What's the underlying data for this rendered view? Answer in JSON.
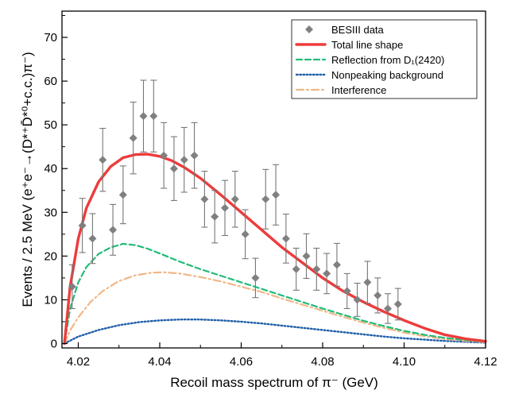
{
  "chart_data": {
    "type": "scatter",
    "xlabel": "Recoil mass spectrum of π⁻ (GeV)",
    "ylabel": "Events / 2.5 MeV (e⁺e⁻→(D*⁺D̄*⁰+c.c.)π⁻)",
    "xlim": [
      4.016,
      4.12
    ],
    "ylim": [
      -1,
      76
    ],
    "xticks": [
      "4.02",
      "4.04",
      "4.06",
      "4.08",
      "4.10",
      "4.12"
    ],
    "yticks": [
      "0",
      "10",
      "20",
      "30",
      "40",
      "50",
      "60",
      "70"
    ],
    "grid": false,
    "legend_position": "top-right",
    "series": [
      {
        "name": "BESIII data",
        "style": "points-with-error-bars",
        "color": "#808080",
        "points": [
          {
            "x": 4.0185,
            "y": 13,
            "err": 5.0
          },
          {
            "x": 4.021,
            "y": 27,
            "err": 6.2
          },
          {
            "x": 4.0235,
            "y": 24,
            "err": 5.7
          },
          {
            "x": 4.026,
            "y": 42,
            "err": 7.2
          },
          {
            "x": 4.0285,
            "y": 26,
            "err": 5.8
          },
          {
            "x": 4.031,
            "y": 34,
            "err": 6.6
          },
          {
            "x": 4.0335,
            "y": 47,
            "err": 8.2
          },
          {
            "x": 4.036,
            "y": 52,
            "err": 8.2
          },
          {
            "x": 4.0385,
            "y": 52,
            "err": 8.2
          },
          {
            "x": 4.041,
            "y": 43,
            "err": 7.5
          },
          {
            "x": 4.0435,
            "y": 40,
            "err": 7.3
          },
          {
            "x": 4.046,
            "y": 42,
            "err": 7.4
          },
          {
            "x": 4.0485,
            "y": 43,
            "err": 7.5
          },
          {
            "x": 4.051,
            "y": 33,
            "err": 6.4
          },
          {
            "x": 4.0535,
            "y": 29,
            "err": 6.0
          },
          {
            "x": 4.056,
            "y": 31,
            "err": 6.3
          },
          {
            "x": 4.0585,
            "y": 33,
            "err": 6.4
          },
          {
            "x": 4.061,
            "y": 25,
            "err": 5.6
          },
          {
            "x": 4.0635,
            "y": 15,
            "err": 4.5
          },
          {
            "x": 4.066,
            "y": 33,
            "err": 6.8
          },
          {
            "x": 4.0685,
            "y": 34,
            "err": 6.9
          },
          {
            "x": 4.071,
            "y": 24,
            "err": 5.6
          },
          {
            "x": 4.0735,
            "y": 17,
            "err": 4.8
          },
          {
            "x": 4.076,
            "y": 20,
            "err": 5.1
          },
          {
            "x": 4.0785,
            "y": 17,
            "err": 4.8
          },
          {
            "x": 4.081,
            "y": 16,
            "err": 4.6
          },
          {
            "x": 4.0835,
            "y": 18,
            "err": 4.9
          },
          {
            "x": 4.086,
            "y": 12,
            "err": 4.0
          },
          {
            "x": 4.0885,
            "y": 10,
            "err": 3.8
          },
          {
            "x": 4.091,
            "y": 14,
            "err": 4.8
          },
          {
            "x": 4.0935,
            "y": 11,
            "err": 4.0
          },
          {
            "x": 4.096,
            "y": 8,
            "err": 3.4
          },
          {
            "x": 4.0985,
            "y": 9,
            "err": 3.6
          }
        ]
      },
      {
        "name": "Total line shape",
        "style": "solid",
        "color": "#ee3b3b",
        "x": [
          4.0166,
          4.018,
          4.02,
          4.022,
          4.025,
          4.028,
          4.031,
          4.034,
          4.037,
          4.04,
          4.043,
          4.046,
          4.05,
          4.055,
          4.06,
          4.065,
          4.07,
          4.075,
          4.08,
          4.085,
          4.09,
          4.095,
          4.1,
          4.105,
          4.11,
          4.115,
          4.12
        ],
        "y": [
          0,
          13,
          24,
          31,
          37,
          40.5,
          42.5,
          43.2,
          43.3,
          42.8,
          41.8,
          40.3,
          37.8,
          34,
          30,
          26,
          22,
          18.5,
          15,
          12,
          9.5,
          7.3,
          5.3,
          3.5,
          2,
          1.1,
          0.5
        ]
      },
      {
        "name": "Reflection from D₁(2420)",
        "style": "dashed",
        "color": "#22bb77",
        "x": [
          4.0166,
          4.018,
          4.02,
          4.022,
          4.025,
          4.028,
          4.031,
          4.034,
          4.037,
          4.04,
          4.045,
          4.05,
          4.055,
          4.06,
          4.065,
          4.07,
          4.075,
          4.08,
          4.085,
          4.09,
          4.095,
          4.1,
          4.105,
          4.11,
          4.115,
          4.12
        ],
        "y": [
          0,
          8,
          14,
          17.5,
          20.5,
          22,
          22.8,
          22.5,
          21.7,
          20.6,
          18.7,
          17,
          15.5,
          14,
          12.5,
          11,
          9.5,
          8,
          6.6,
          5.2,
          4,
          2.9,
          2,
          1.3,
          0.8,
          0.4
        ]
      },
      {
        "name": "Nonpeaking background",
        "style": "dotted",
        "color": "#1f5fa8",
        "x": [
          4.0166,
          4.02,
          4.025,
          4.03,
          4.035,
          4.04,
          4.045,
          4.05,
          4.055,
          4.06,
          4.065,
          4.07,
          4.075,
          4.08,
          4.085,
          4.09,
          4.095,
          4.1,
          4.105,
          4.11,
          4.115,
          4.12
        ],
        "y": [
          0,
          1.6,
          3.1,
          4.2,
          4.9,
          5.3,
          5.5,
          5.5,
          5.3,
          5,
          4.6,
          4.1,
          3.6,
          3.1,
          2.6,
          2.1,
          1.6,
          1.2,
          0.9,
          0.6,
          0.4,
          0.2
        ]
      },
      {
        "name": "Interference",
        "style": "dash-dot",
        "color": "#f0b787",
        "x": [
          4.0166,
          4.018,
          4.02,
          4.023,
          4.026,
          4.03,
          4.034,
          4.038,
          4.041,
          4.045,
          4.05,
          4.055,
          4.06,
          4.065,
          4.07,
          4.075,
          4.08,
          4.085,
          4.09,
          4.095,
          4.1,
          4.105,
          4.11,
          4.115,
          4.12
        ],
        "y": [
          0,
          3,
          6,
          9.5,
          12,
          14.3,
          15.6,
          16.2,
          16.3,
          16,
          15.2,
          14.2,
          13,
          11.8,
          10.3,
          8.9,
          7.5,
          6.1,
          4.8,
          3.6,
          2.5,
          1.7,
          1,
          0.6,
          0.3
        ]
      }
    ],
    "legend": [
      {
        "label": "BESIII data",
        "marker": "diamond",
        "color": "#808080"
      },
      {
        "label": "Total line shape",
        "line": "solid",
        "color": "#ee3b3b"
      },
      {
        "label": "Reflection from D₁(2420)",
        "line": "dashed",
        "color": "#22bb77"
      },
      {
        "label": "Nonpeaking background",
        "line": "dotted",
        "color": "#1f5fa8"
      },
      {
        "label": "Interference",
        "line": "dash-dot",
        "color": "#f0b787"
      }
    ]
  }
}
